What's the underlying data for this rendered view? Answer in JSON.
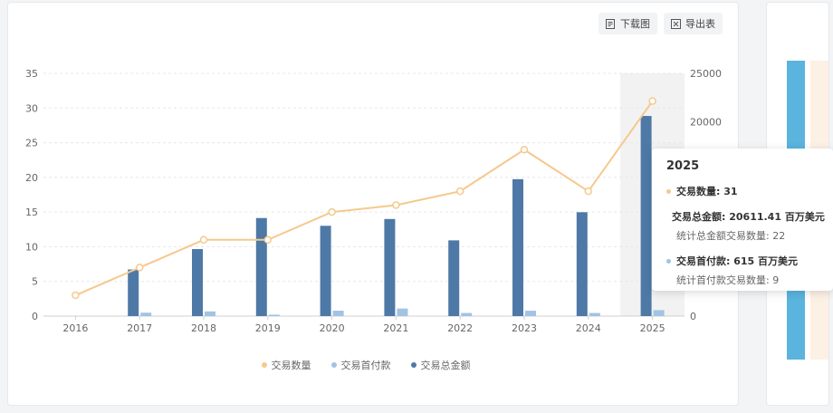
{
  "toolbar": {
    "download_label": "下载图",
    "export_label": "导出表"
  },
  "legend": {
    "items": [
      {
        "label": "交易数量",
        "color": "#f5c98d"
      },
      {
        "label": "交易首付款",
        "color": "#a3c3e3"
      },
      {
        "label": "交易总金额",
        "color": "#4e79a7"
      }
    ]
  },
  "tooltip": {
    "year": "2025",
    "count_line": "交易数量: 31",
    "total_line": "交易总金额: 20611.41 百万美元",
    "total_sub": "统计总金额交易数量: 22",
    "down_line": "交易首付款: 615 百万美元",
    "down_sub": "统计首付款交易数量: 9"
  },
  "chart_data": {
    "type": "bar",
    "categories": [
      "2016",
      "2017",
      "2018",
      "2019",
      "2020",
      "2021",
      "2022",
      "2023",
      "2024",
      "2025"
    ],
    "y_left": {
      "min": 0,
      "max": 35,
      "ticks": [
        0,
        5,
        10,
        15,
        20,
        25,
        30,
        35
      ]
    },
    "y_right": {
      "min": 0,
      "max": 25000,
      "ticks": [
        0,
        5000,
        10000,
        15000,
        20000,
        25000
      ]
    },
    "series": [
      {
        "name": "交易总金额",
        "kind": "bar",
        "axis": "right",
        "color": "#4e79a7",
        "values": [
          0,
          4800,
          6900,
          10100,
          9300,
          10000,
          7800,
          14100,
          10700,
          20611.41
        ]
      },
      {
        "name": "交易首付款",
        "kind": "bar",
        "axis": "right",
        "color": "#a3c3e3",
        "values": [
          0,
          350,
          480,
          150,
          560,
          780,
          320,
          550,
          320,
          615
        ]
      },
      {
        "name": "交易数量",
        "kind": "line",
        "axis": "left",
        "color": "#f5c98d",
        "values": [
          3,
          7,
          11,
          11,
          15,
          16,
          18,
          24,
          18,
          31
        ]
      }
    ],
    "highlight_category": "2025",
    "grid": true,
    "legend_position": "bottom"
  }
}
